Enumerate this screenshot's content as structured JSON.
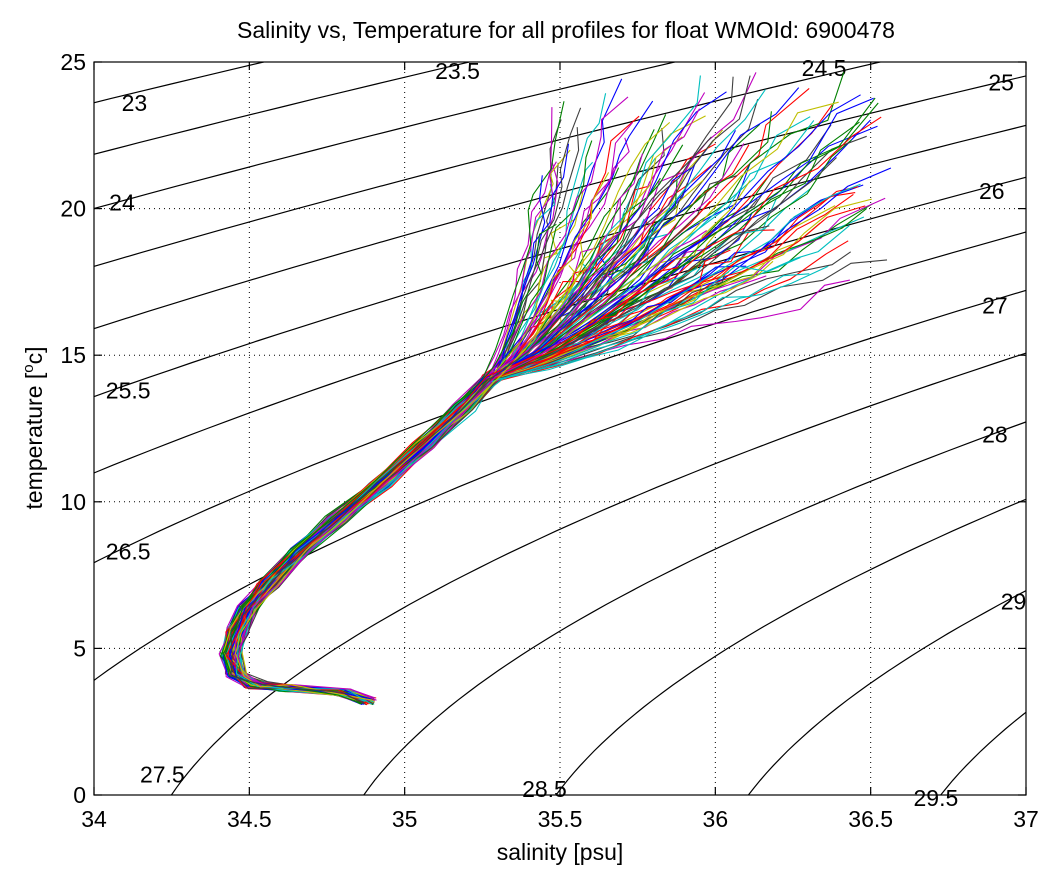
{
  "chart_data": {
    "type": "line",
    "title": "Salinity vs, Temperature for all profiles for float WMOId: 6900478",
    "xlabel": "salinity [psu]",
    "ylabel_prefix": "temperature [",
    "ylabel_sup": "o",
    "ylabel_suffix": "c]",
    "xlim": [
      34,
      37
    ],
    "ylim": [
      0,
      25
    ],
    "xticks": [
      34,
      34.5,
      35,
      35.5,
      36,
      36.5,
      37
    ],
    "xtick_labels": [
      "34",
      "34.5",
      "35",
      "35.5",
      "36",
      "36.5",
      "37"
    ],
    "yticks": [
      0,
      5,
      10,
      15,
      20,
      25
    ],
    "ytick_labels": [
      "0",
      "5",
      "10",
      "15",
      "20",
      "25"
    ],
    "grid": true,
    "grid_style": "dotted",
    "density_contours": [
      {
        "sigma": 23,
        "label": "23",
        "label_at": [
          34.13,
          23.6
        ]
      },
      {
        "sigma": 23.5,
        "label": "23.5",
        "label_at": [
          35.17,
          24.7
        ]
      },
      {
        "sigma": 24,
        "label": "24",
        "label_at": [
          34.09,
          20.2
        ]
      },
      {
        "sigma": 24.5,
        "label": "24.5",
        "label_at": [
          36.35,
          24.8
        ]
      },
      {
        "sigma": 25,
        "label": "25",
        "label_at": [
          36.92,
          24.3
        ]
      },
      {
        "sigma": 25.5,
        "label": "25.5",
        "label_at": [
          34.11,
          13.8
        ]
      },
      {
        "sigma": 26,
        "label": "26",
        "label_at": [
          36.89,
          20.6
        ]
      },
      {
        "sigma": 26.5,
        "label": "26.5",
        "label_at": [
          34.11,
          8.3
        ]
      },
      {
        "sigma": 27,
        "label": "27",
        "label_at": [
          36.9,
          16.7
        ]
      },
      {
        "sigma": 27.5,
        "label": "27.5",
        "label_at": [
          34.22,
          0.7
        ]
      },
      {
        "sigma": 28,
        "label": "28",
        "label_at": [
          36.9,
          12.3
        ]
      },
      {
        "sigma": 28.5,
        "label": "28.5",
        "label_at": [
          35.45,
          0.2
        ]
      },
      {
        "sigma": 29,
        "label": "29",
        "label_at": [
          36.96,
          6.6
        ]
      },
      {
        "sigma": 29.5,
        "label": "29.5",
        "label_at": [
          36.71,
          -0.1
        ]
      }
    ],
    "profile_colors": [
      "#0000ff",
      "#008000",
      "#ff0000",
      "#00bfbf",
      "#bf00bf",
      "#bfbf00",
      "#404040"
    ],
    "profile_count": 140,
    "profile_shape": {
      "deep_core": [
        [
          34.88,
          3.2
        ],
        [
          34.8,
          3.5
        ],
        [
          34.62,
          3.65
        ],
        [
          34.52,
          3.75
        ],
        [
          34.46,
          4.1
        ],
        [
          34.44,
          4.8
        ],
        [
          34.46,
          5.6
        ],
        [
          34.5,
          6.4
        ],
        [
          34.56,
          7.2
        ],
        [
          34.66,
          8.3
        ],
        [
          34.78,
          9.4
        ],
        [
          34.92,
          10.6
        ],
        [
          35.06,
          11.9
        ],
        [
          35.19,
          13.2
        ],
        [
          35.28,
          14.2
        ]
      ],
      "upper_fan_salinity_range": [
        35.45,
        36.55
      ],
      "upper_fan_temperature_range": [
        17.5,
        24.4
      ]
    }
  }
}
